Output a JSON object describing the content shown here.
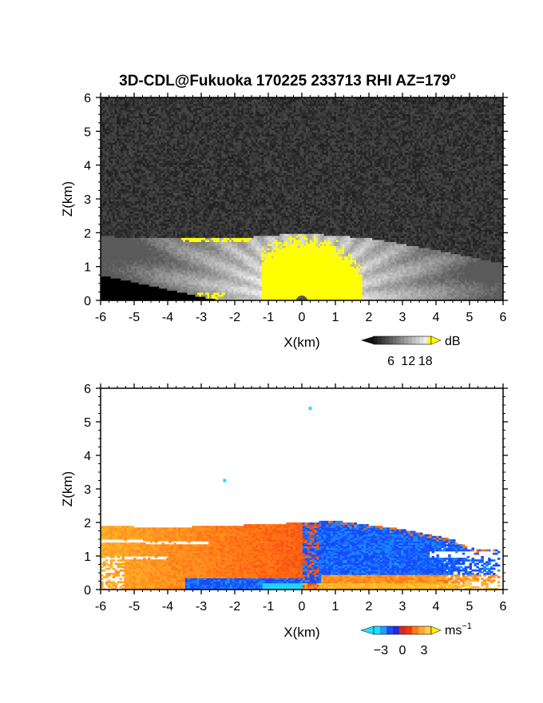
{
  "title": "3D-CDL@Fukuoka 170225 233713 RHI AZ=179",
  "title_sup": "o",
  "colors": {
    "background": "#ffffff",
    "panel1_bg": "#2a2a2a",
    "yellow": "#ffff00",
    "blue": "#1a4dff",
    "orange": "#ff8c1a",
    "red": "#ff3300",
    "cyan": "#22ddff"
  },
  "chart_data": [
    {
      "type": "heatmap",
      "quantity": "backscatter intensity",
      "xlabel": "X(km)",
      "ylabel": "Z(km)",
      "xlim": [
        -6,
        6
      ],
      "ylim": [
        0,
        6
      ],
      "xticks": [
        "-6",
        "-5",
        "-4",
        "-3",
        "-2",
        "-1",
        "0",
        "1",
        "2",
        "3",
        "4",
        "5",
        "6"
      ],
      "yticks": [
        "0",
        "1",
        "2",
        "3",
        "4",
        "5",
        "6"
      ],
      "colorbar": {
        "unit": "dB",
        "ticks": [
          "6",
          "12",
          "18"
        ],
        "range": [
          0,
          20
        ],
        "colormap": "gray-to-yellow"
      },
      "features": {
        "layer_top_km": [
          [
            -6,
            1.9
          ],
          [
            -4,
            1.85
          ],
          [
            -2,
            1.85
          ],
          [
            0,
            2.0
          ],
          [
            2,
            1.85
          ],
          [
            4,
            1.5
          ],
          [
            6,
            1.1
          ]
        ],
        "saturated_core": {
          "x_range": [
            -1,
            1.5
          ],
          "z_range": [
            0,
            1.9
          ],
          "value": ">18"
        },
        "ground_shadow_x_range": [
          -6,
          -2.5
        ]
      }
    },
    {
      "type": "heatmap",
      "quantity": "radial velocity",
      "xlabel": "X(km)",
      "ylabel": "Z(km)",
      "xlim": [
        -6,
        6
      ],
      "ylim": [
        0,
        6
      ],
      "xticks": [
        "-6",
        "-5",
        "-4",
        "-3",
        "-2",
        "-1",
        "0",
        "1",
        "2",
        "3",
        "4",
        "5",
        "6"
      ],
      "yticks": [
        "0",
        "1",
        "2",
        "3",
        "4",
        "5",
        "6"
      ],
      "colorbar": {
        "unit": "ms",
        "unit_sup": "−1",
        "ticks": [
          "−3",
          "0",
          "3"
        ],
        "range": [
          -4,
          4
        ],
        "colormap": "cyan-blue-red-yellow"
      },
      "features": {
        "approaching_side_x_range": [
          -6,
          0
        ],
        "approaching_velocity_ms": 2.5,
        "receding_side_x_range": [
          0,
          5.5
        ],
        "receding_velocity_ms": -2.5,
        "isolated_points_km": [
          [
            0.25,
            5.4
          ],
          [
            -2.3,
            3.25
          ]
        ]
      }
    }
  ]
}
